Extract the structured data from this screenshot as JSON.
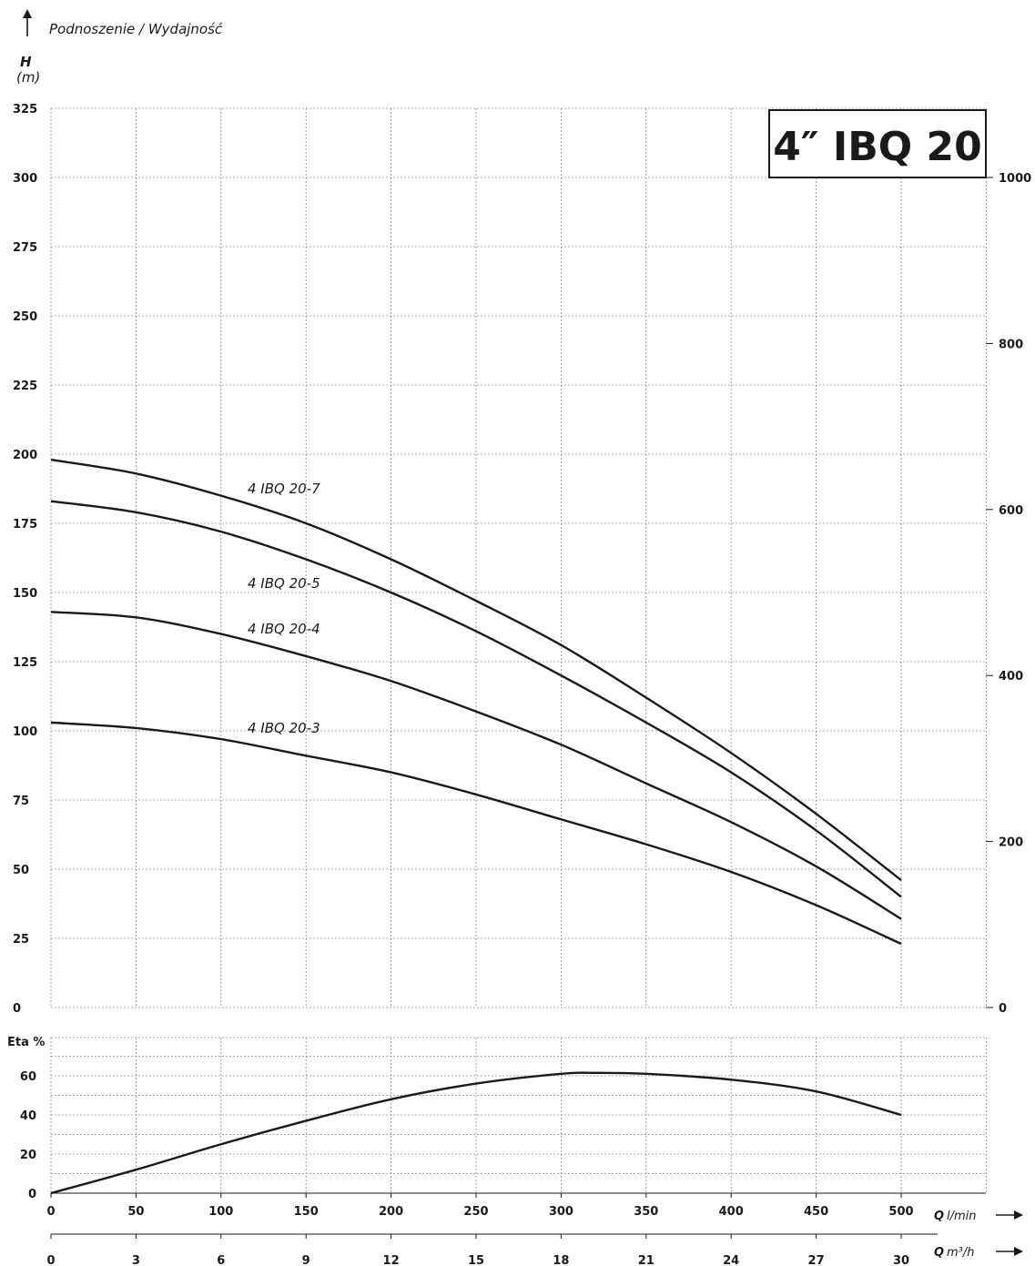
{
  "header": {
    "title": "Podnoszenie / Wydajność",
    "h_symbol": "H",
    "h_unit": "(m)",
    "model_box": "4″ IBQ 20"
  },
  "axes": {
    "q_lmin_symbol": "Q",
    "q_lmin_unit": "l/min",
    "q_m3h_symbol": "Q",
    "q_m3h_unit": "m³/h",
    "eta_label": "Eta %"
  },
  "chart_data": [
    {
      "type": "line",
      "title": "",
      "ylabel": "H (m)",
      "xlabel": "Q l/min",
      "xlim": [
        0,
        550
      ],
      "ylim": [
        0,
        325
      ],
      "yticks": [
        0,
        25,
        50,
        75,
        100,
        125,
        150,
        175,
        200,
        225,
        250,
        275,
        300,
        325
      ],
      "xticks": [
        0,
        50,
        100,
        150,
        200,
        250,
        300,
        350,
        400,
        450,
        500
      ],
      "secondary_xticks": {
        "unit": "m³/h",
        "values": [
          0,
          3,
          6,
          9,
          12,
          15,
          18,
          21,
          24,
          27,
          30
        ]
      },
      "secondary_yticks": {
        "values": [
          0,
          200,
          400,
          600,
          800,
          1000
        ],
        "positions_h": [
          0,
          60,
          120,
          180,
          240,
          300
        ]
      },
      "grid": true,
      "series": [
        {
          "name": "4 IBQ 20-7",
          "x": [
            0,
            50,
            100,
            150,
            200,
            250,
            300,
            350,
            400,
            450,
            500
          ],
          "y": [
            198,
            193,
            185,
            175,
            162,
            147,
            131,
            112,
            92,
            70,
            46
          ]
        },
        {
          "name": "4 IBQ 20-5",
          "x": [
            0,
            50,
            100,
            150,
            200,
            250,
            300,
            350,
            400,
            450,
            500
          ],
          "y": [
            183,
            179,
            172,
            162,
            150,
            136,
            120,
            103,
            85,
            64,
            40
          ]
        },
        {
          "name": "4 IBQ 20-4",
          "x": [
            0,
            50,
            100,
            150,
            200,
            250,
            300,
            350,
            400,
            450,
            500
          ],
          "y": [
            143,
            141,
            135,
            127,
            118,
            107,
            95,
            81,
            67,
            51,
            32
          ]
        },
        {
          "name": "4 IBQ 20-3",
          "x": [
            0,
            50,
            100,
            150,
            200,
            250,
            300,
            350,
            400,
            450,
            500
          ],
          "y": [
            103,
            101,
            97,
            91,
            85,
            77,
            68,
            59,
            49,
            37,
            23
          ]
        }
      ]
    },
    {
      "type": "line",
      "title": "",
      "ylabel": "Eta %",
      "xlabel": "Q l/min",
      "xlim": [
        0,
        550
      ],
      "ylim": [
        0,
        70
      ],
      "yticks": [
        0,
        20,
        40,
        60
      ],
      "xticks": [
        0,
        50,
        100,
        150,
        200,
        250,
        300,
        350,
        400,
        450,
        500
      ],
      "grid": true,
      "series": [
        {
          "name": "",
          "x": [
            0,
            50,
            100,
            150,
            200,
            250,
            300,
            320,
            350,
            400,
            450,
            500
          ],
          "y": [
            0,
            12,
            25,
            37,
            48,
            56,
            61,
            61.5,
            61,
            58,
            52,
            40
          ]
        }
      ]
    }
  ]
}
